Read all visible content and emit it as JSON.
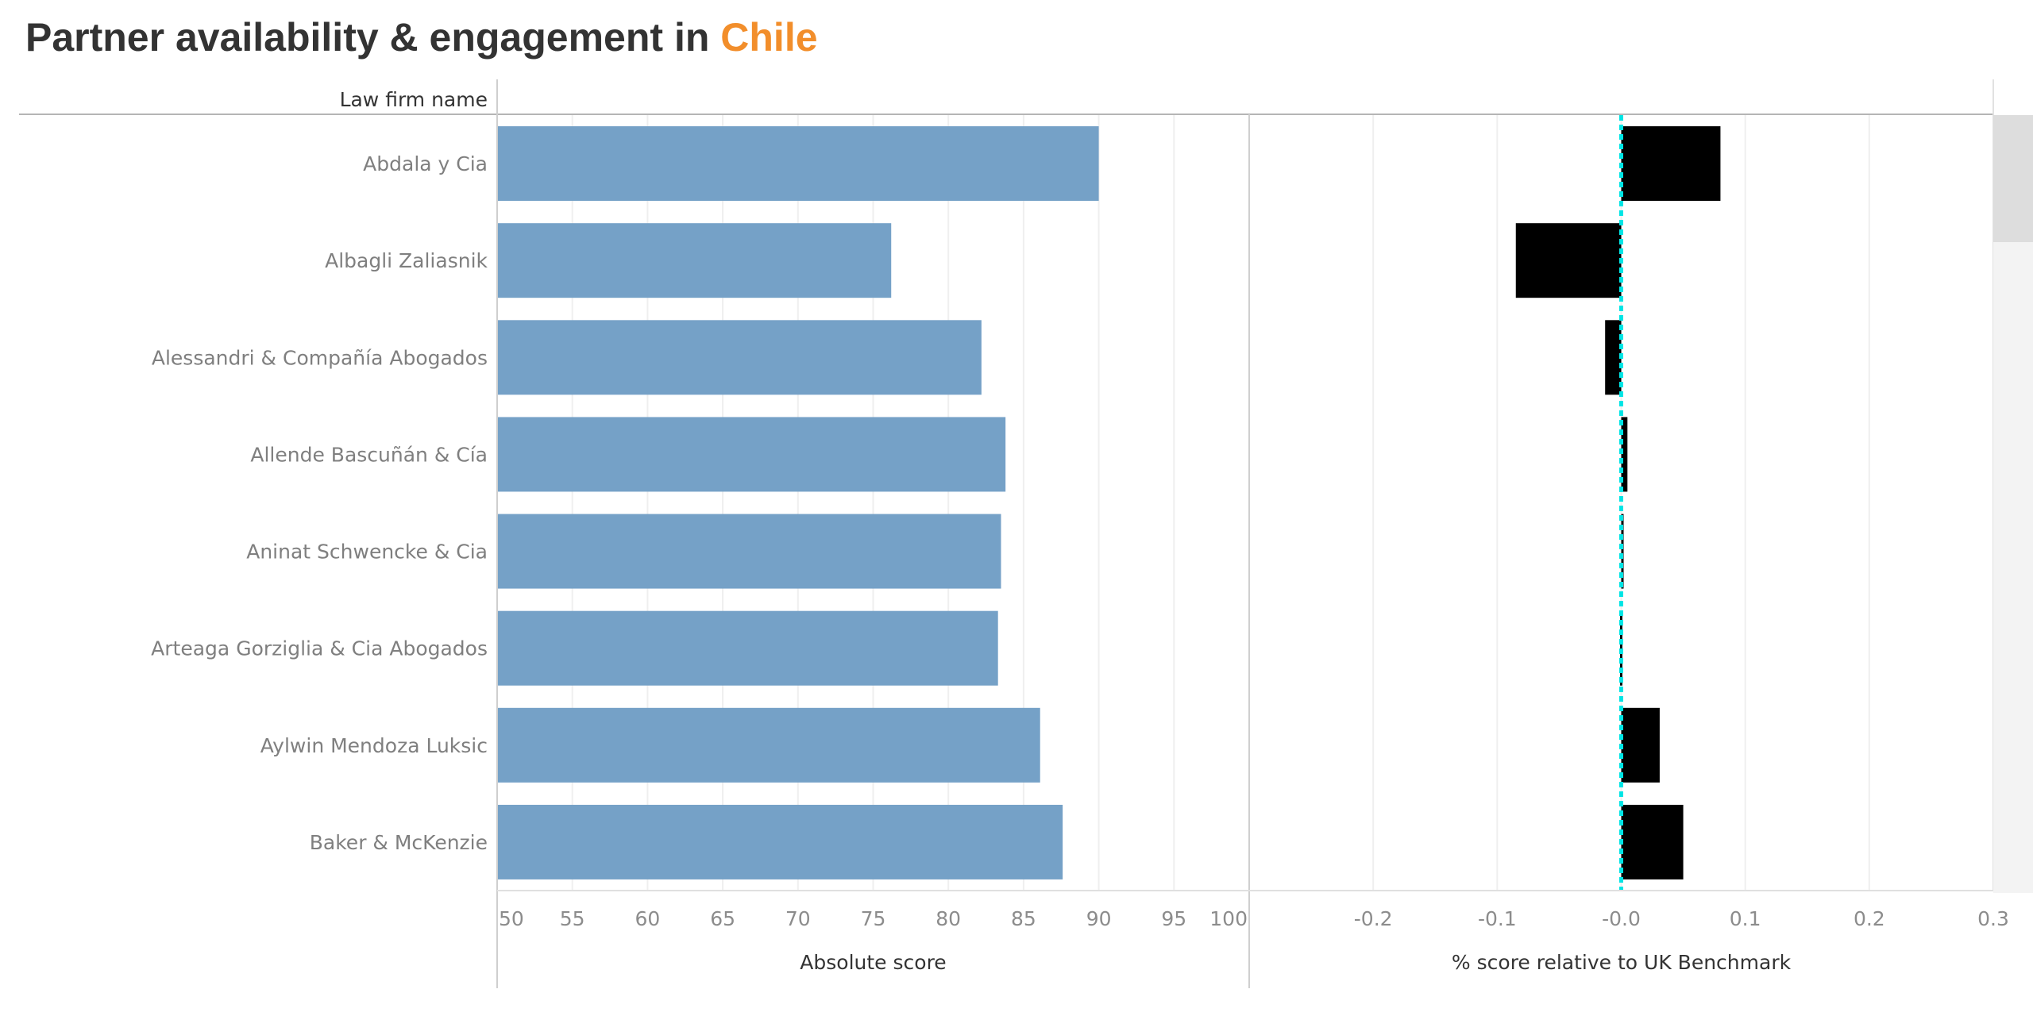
{
  "title": {
    "prefix": "Partner availability & engagement in ",
    "country": "Chile"
  },
  "colors": {
    "absolute_bar": "#75a1c7",
    "relative_bar": "#000000",
    "benchmark_line": "#00e5e5",
    "title_accent": "#f28e2b",
    "title_text": "#333333"
  },
  "chart_data": {
    "type": "bar",
    "orientation": "horizontal",
    "row_header": "Law firm name",
    "categories": [
      "Abdala y Cia",
      "Albagli Zaliasnik",
      "Alessandri & Compañía Abogados",
      "Allende Bascuñán & Cía",
      "Aninat Schwencke & Cia",
      "Arteaga Gorziglia & Cia Abogados",
      "Aylwin Mendoza Luksic",
      "Baker & McKenzie"
    ],
    "panels": [
      {
        "xlabel": "Absolute score",
        "xlim": [
          50,
          100
        ],
        "ticks": [
          50,
          55,
          60,
          65,
          70,
          75,
          80,
          85,
          90,
          95,
          100
        ],
        "tick_labels": [
          "50",
          "55",
          "60",
          "65",
          "70",
          "75",
          "80",
          "85",
          "90",
          "95",
          "100"
        ],
        "values": [
          90,
          76.2,
          82.2,
          83.8,
          83.5,
          83.3,
          86.1,
          87.6
        ],
        "grid": true
      },
      {
        "xlabel": "% score relative to UK Benchmark",
        "xlim": [
          -0.3,
          0.3
        ],
        "ticks": [
          -0.2,
          -0.1,
          0.0,
          0.1,
          0.2,
          0.3
        ],
        "tick_labels": [
          "-0.2",
          "-0.1",
          "-0.0",
          "0.1",
          "0.2",
          "0.3"
        ],
        "values": [
          0.08,
          -0.085,
          -0.013,
          0.005,
          0.001,
          -0.001,
          0.031,
          0.05
        ],
        "reference_line": 0.0,
        "grid": true
      }
    ]
  }
}
